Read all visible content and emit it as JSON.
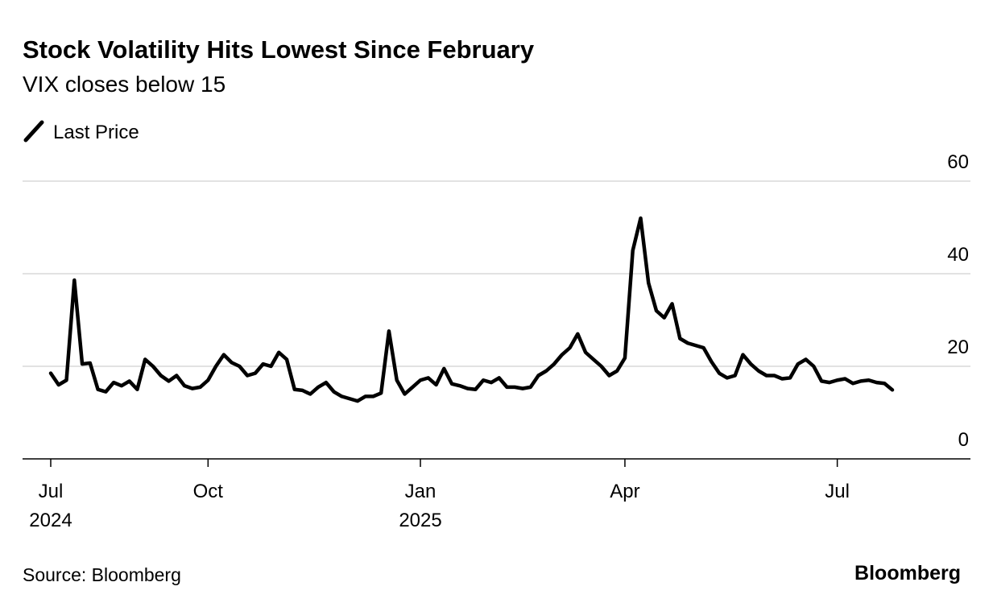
{
  "chart_data": {
    "type": "line",
    "title": "Stock Volatility Hits Lowest Since February",
    "subtitle": "VIX closes below 15",
    "source": "Source: Bloomberg",
    "brand": "Bloomberg",
    "categories": [
      "Jul",
      null,
      null,
      null,
      null,
      null,
      null,
      null,
      null,
      null,
      null,
      null,
      null,
      null,
      null,
      null,
      null,
      null,
      null,
      null,
      "Oct",
      null,
      null,
      null,
      null,
      null,
      null,
      null,
      null,
      null,
      null,
      null,
      null,
      null,
      null,
      null,
      null,
      null,
      null,
      null,
      null,
      null,
      null,
      null,
      null,
      null,
      null,
      "Jan",
      null,
      null,
      null,
      null,
      null,
      null,
      null,
      null,
      null,
      null,
      null,
      null,
      null,
      null,
      null,
      null,
      null,
      null,
      null,
      null,
      null,
      null,
      null,
      null,
      null,
      "Apr",
      null,
      null,
      null,
      null,
      null,
      null,
      null,
      null,
      null,
      null,
      null,
      null,
      null,
      null,
      null,
      null,
      null,
      null,
      null,
      null,
      null,
      null,
      null,
      null,
      null,
      null,
      "Jul",
      null,
      null,
      null,
      null,
      null,
      null,
      null
    ],
    "category_years": [
      "2024",
      null,
      null,
      null,
      null,
      null,
      null,
      null,
      null,
      null,
      null,
      null,
      null,
      null,
      null,
      null,
      null,
      null,
      null,
      null,
      null,
      null,
      null,
      null,
      null,
      null,
      null,
      null,
      null,
      null,
      null,
      null,
      null,
      null,
      null,
      null,
      null,
      null,
      null,
      null,
      null,
      null,
      null,
      null,
      null,
      null,
      null,
      "2025",
      null,
      null,
      null,
      null,
      null,
      null,
      null,
      null,
      null,
      null,
      null,
      null,
      null,
      null,
      null,
      null,
      null,
      null,
      null,
      null,
      null,
      null,
      null,
      null,
      null,
      null,
      null,
      null,
      null,
      null,
      null,
      null,
      null,
      null,
      null,
      null,
      null,
      null,
      null,
      null,
      null,
      null,
      null,
      null,
      null,
      null,
      null,
      null,
      null,
      null,
      null,
      null,
      null,
      null,
      null,
      null,
      null,
      null,
      null,
      null
    ],
    "series": [
      {
        "name": "Last Price",
        "color": "#000000",
        "values": [
          18.5,
          16,
          17,
          38.6,
          20.5,
          20.7,
          15,
          14.5,
          16.5,
          15.8,
          16.8,
          15,
          21.5,
          20,
          18,
          16.8,
          18,
          15.8,
          15.2,
          15.5,
          17,
          20,
          22.5,
          20.8,
          20,
          18,
          18.5,
          20.5,
          20,
          23,
          21.5,
          15,
          14.8,
          14,
          15.5,
          16.5,
          14.5,
          13.5,
          13,
          12.5,
          13.5,
          13.5,
          14.2,
          27.6,
          17,
          14,
          15.5,
          17,
          17.5,
          16,
          19.5,
          16.2,
          15.8,
          15.2,
          15,
          17,
          16.5,
          17.5,
          15.5,
          15.5,
          15.2,
          15.5,
          18,
          19,
          20.5,
          22.5,
          24,
          27,
          23,
          21.5,
          20,
          18,
          19,
          21.8,
          45,
          52,
          38,
          32,
          30.5,
          33.5,
          26,
          25,
          24.5,
          24,
          21,
          18.5,
          17.5,
          18,
          22.5,
          20.5,
          19,
          18,
          18,
          17.3,
          17.5,
          20.5,
          21.5,
          20,
          16.8,
          16.5,
          17,
          17.3,
          16.3,
          16.8,
          17,
          16.5,
          16.3,
          14.9
        ]
      }
    ],
    "ylim": [
      0,
      60
    ],
    "yticks": [
      0,
      20,
      40,
      60
    ],
    "grid": true
  }
}
